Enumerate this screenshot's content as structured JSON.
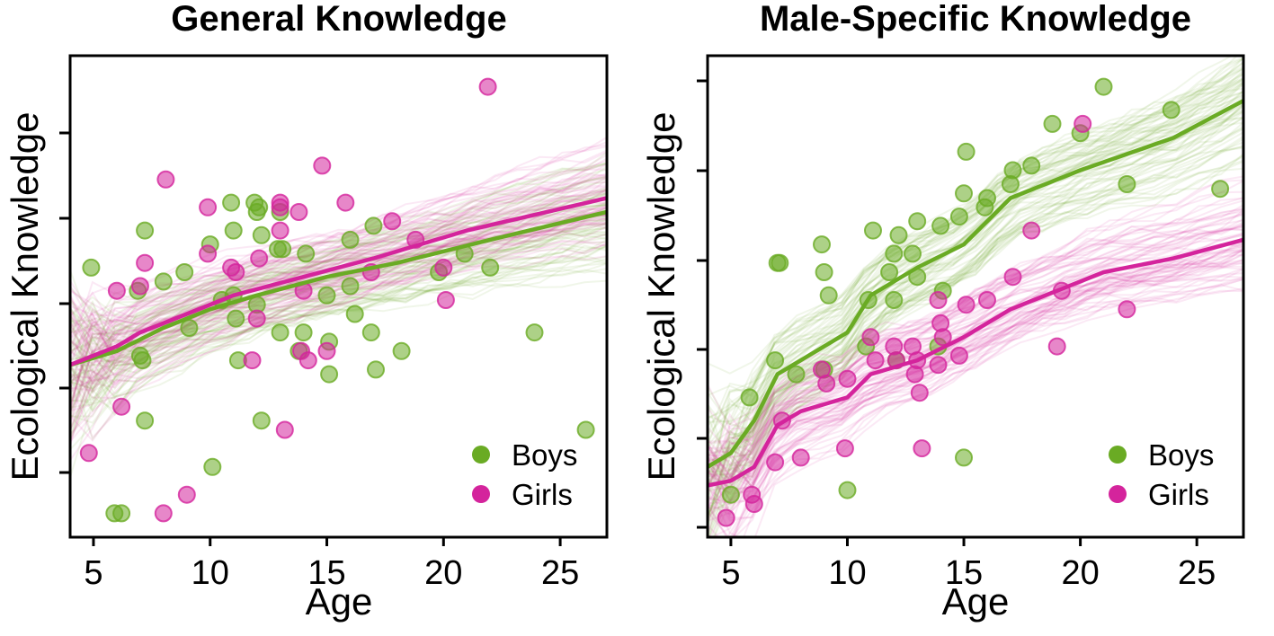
{
  "chart_data": [
    {
      "type": "scatter",
      "title": "General Knowledge",
      "xlabel": "Age",
      "ylabel": "Ecological Knowledge",
      "xlim": [
        4,
        27
      ],
      "x_ticks": [
        5,
        10,
        15,
        20,
        25
      ],
      "ylim": [
        0,
        1
      ],
      "y_tick_labels_shown": false,
      "y_ticks_count": 5,
      "legend": "bottom-right",
      "series": [
        {
          "name": "Boys",
          "color": "#6aab24",
          "trend_line": [
            [
              4,
              0.36
            ],
            [
              6,
              0.39
            ],
            [
              8,
              0.44
            ],
            [
              10,
              0.48
            ],
            [
              12,
              0.51
            ],
            [
              15,
              0.55
            ],
            [
              18,
              0.58
            ],
            [
              22,
              0.63
            ],
            [
              27,
              0.69
            ]
          ],
          "points": [
            [
              4.9,
              0.57
            ],
            [
              6.9,
              0.52
            ],
            [
              7.2,
              0.65
            ],
            [
              8,
              0.54
            ],
            [
              8.9,
              0.56
            ],
            [
              7,
              0.38
            ],
            [
              7.1,
              0.37
            ],
            [
              7.2,
              0.24
            ],
            [
              10,
              0.62
            ],
            [
              10.9,
              0.71
            ],
            [
              11,
              0.65
            ],
            [
              11.9,
              0.71
            ],
            [
              12.2,
              0.64
            ],
            [
              12.1,
              0.7
            ],
            [
              12,
              0.69
            ],
            [
              13,
              0.69
            ],
            [
              12.9,
              0.61
            ],
            [
              13.1,
              0.61
            ],
            [
              14.1,
              0.6
            ],
            [
              12,
              0.49
            ],
            [
              11.1,
              0.46
            ],
            [
              11.2,
              0.37
            ],
            [
              12.2,
              0.24
            ],
            [
              14,
              0.43
            ],
            [
              13,
              0.43
            ],
            [
              15.1,
              0.41
            ],
            [
              16,
              0.63
            ],
            [
              16,
              0.53
            ],
            [
              15,
              0.51
            ],
            [
              15.1,
              0.34
            ],
            [
              16.2,
              0.47
            ],
            [
              17,
              0.66
            ],
            [
              16.9,
              0.43
            ],
            [
              17.1,
              0.35
            ],
            [
              18.2,
              0.39
            ],
            [
              19.8,
              0.56
            ],
            [
              20.9,
              0.6
            ],
            [
              22,
              0.57
            ],
            [
              23.9,
              0.43
            ],
            [
              26.1,
              0.22
            ],
            [
              5.9,
              0.04
            ],
            [
              6.2,
              0.04
            ],
            [
              10.1,
              0.14
            ],
            [
              9.1,
              0.44
            ],
            [
              11,
              0.51
            ],
            [
              13.8,
              0.39
            ],
            [
              10.5,
              0.5
            ]
          ]
        },
        {
          "name": "Girls",
          "color": "#d4249c",
          "trend_line": [
            [
              4,
              0.36
            ],
            [
              6,
              0.4
            ],
            [
              7,
              0.43
            ],
            [
              9,
              0.47
            ],
            [
              11,
              0.51
            ],
            [
              14,
              0.55
            ],
            [
              17,
              0.59
            ],
            [
              21,
              0.65
            ],
            [
              27,
              0.72
            ]
          ],
          "points": [
            [
              4.8,
              0.17
            ],
            [
              6,
              0.52
            ],
            [
              6.2,
              0.27
            ],
            [
              7.2,
              0.58
            ],
            [
              7,
              0.53
            ],
            [
              8.1,
              0.76
            ],
            [
              9,
              0.08
            ],
            [
              8,
              0.04
            ],
            [
              9.9,
              0.7
            ],
            [
              9.9,
              0.6
            ],
            [
              10.9,
              0.57
            ],
            [
              11.1,
              0.56
            ],
            [
              12.1,
              0.59
            ],
            [
              13,
              0.71
            ],
            [
              13,
              0.7
            ],
            [
              13,
              0.65
            ],
            [
              13.8,
              0.69
            ],
            [
              14,
              0.52
            ],
            [
              14.8,
              0.79
            ],
            [
              15,
              0.39
            ],
            [
              15.8,
              0.71
            ],
            [
              16.9,
              0.56
            ],
            [
              17.8,
              0.67
            ],
            [
              18.8,
              0.63
            ],
            [
              20,
              0.57
            ],
            [
              20.1,
              0.5
            ],
            [
              21.9,
              0.96
            ],
            [
              11.8,
              0.37
            ],
            [
              13.2,
              0.22
            ],
            [
              14.2,
              0.37
            ],
            [
              12,
              0.46
            ],
            [
              13.9,
              0.39
            ]
          ]
        }
      ]
    },
    {
      "type": "scatter",
      "title": "Male-Specific Knowledge",
      "xlabel": "Age",
      "ylabel": "Ecological Knowledge",
      "xlim": [
        4,
        27
      ],
      "x_ticks": [
        5,
        10,
        15,
        20,
        25
      ],
      "ylim": [
        0,
        1
      ],
      "y_tick_labels_shown": false,
      "y_ticks_count": 6,
      "legend": "bottom-right",
      "series": [
        {
          "name": "Boys",
          "color": "#6aab24",
          "trend_line": [
            [
              4,
              0.14
            ],
            [
              5,
              0.17
            ],
            [
              6,
              0.24
            ],
            [
              7,
              0.34
            ],
            [
              8,
              0.37
            ],
            [
              10,
              0.43
            ],
            [
              11,
              0.51
            ],
            [
              13,
              0.57
            ],
            [
              15,
              0.62
            ],
            [
              17,
              0.72
            ],
            [
              20,
              0.78
            ],
            [
              24,
              0.85
            ],
            [
              27,
              0.93
            ]
          ],
          "points": [
            [
              5,
              0.08
            ],
            [
              5.8,
              0.29
            ],
            [
              6.9,
              0.37
            ],
            [
              7,
              0.58
            ],
            [
              7.1,
              0.58
            ],
            [
              7.8,
              0.34
            ],
            [
              8.9,
              0.62
            ],
            [
              9,
              0.56
            ],
            [
              9.2,
              0.51
            ],
            [
              9,
              0.35
            ],
            [
              10,
              0.09
            ],
            [
              10.9,
              0.5
            ],
            [
              11.1,
              0.65
            ],
            [
              12,
              0.6
            ],
            [
              12,
              0.5
            ],
            [
              12.2,
              0.64
            ],
            [
              11.8,
              0.56
            ],
            [
              13,
              0.67
            ],
            [
              12.8,
              0.6
            ],
            [
              13,
              0.55
            ],
            [
              14,
              0.66
            ],
            [
              14.1,
              0.52
            ],
            [
              14.8,
              0.68
            ],
            [
              15,
              0.73
            ],
            [
              15.1,
              0.82
            ],
            [
              15.9,
              0.7
            ],
            [
              16,
              0.72
            ],
            [
              17,
              0.75
            ],
            [
              17.1,
              0.78
            ],
            [
              17.9,
              0.79
            ],
            [
              18.8,
              0.88
            ],
            [
              20,
              0.86
            ],
            [
              21,
              0.96
            ],
            [
              22,
              0.75
            ],
            [
              23.9,
              0.91
            ],
            [
              26,
              0.74
            ],
            [
              15,
              0.16
            ],
            [
              10.8,
              0.4
            ],
            [
              12.1,
              0.37
            ],
            [
              13.9,
              0.4
            ]
          ]
        },
        {
          "name": "Girls",
          "color": "#d4249c",
          "trend_line": [
            [
              4,
              0.1
            ],
            [
              5,
              0.11
            ],
            [
              6,
              0.14
            ],
            [
              7,
              0.23
            ],
            [
              8,
              0.26
            ],
            [
              10,
              0.29
            ],
            [
              11,
              0.34
            ],
            [
              13,
              0.37
            ],
            [
              15,
              0.42
            ],
            [
              17,
              0.48
            ],
            [
              19,
              0.52
            ],
            [
              21,
              0.56
            ],
            [
              24,
              0.59
            ],
            [
              27,
              0.63
            ]
          ],
          "points": [
            [
              4.8,
              0.03
            ],
            [
              5.9,
              0.08
            ],
            [
              6,
              0.06
            ],
            [
              6.9,
              0.15
            ],
            [
              7.2,
              0.24
            ],
            [
              8,
              0.16
            ],
            [
              8.9,
              0.35
            ],
            [
              9.1,
              0.32
            ],
            [
              9.9,
              0.18
            ],
            [
              10,
              0.33
            ],
            [
              11,
              0.42
            ],
            [
              11.2,
              0.37
            ],
            [
              12,
              0.4
            ],
            [
              12.1,
              0.37
            ],
            [
              12.9,
              0.34
            ],
            [
              13,
              0.37
            ],
            [
              13.1,
              0.3
            ],
            [
              13.2,
              0.18
            ],
            [
              13.9,
              0.36
            ],
            [
              14.1,
              0.42
            ],
            [
              14,
              0.45
            ],
            [
              14.8,
              0.38
            ],
            [
              15.1,
              0.49
            ],
            [
              16,
              0.5
            ],
            [
              17.1,
              0.55
            ],
            [
              17.9,
              0.65
            ],
            [
              19,
              0.4
            ],
            [
              19.2,
              0.52
            ],
            [
              20.1,
              0.88
            ],
            [
              22,
              0.48
            ],
            [
              12.8,
              0.4
            ],
            [
              13.9,
              0.5
            ]
          ]
        }
      ]
    }
  ],
  "legend_labels": [
    "Boys",
    "Girls"
  ]
}
